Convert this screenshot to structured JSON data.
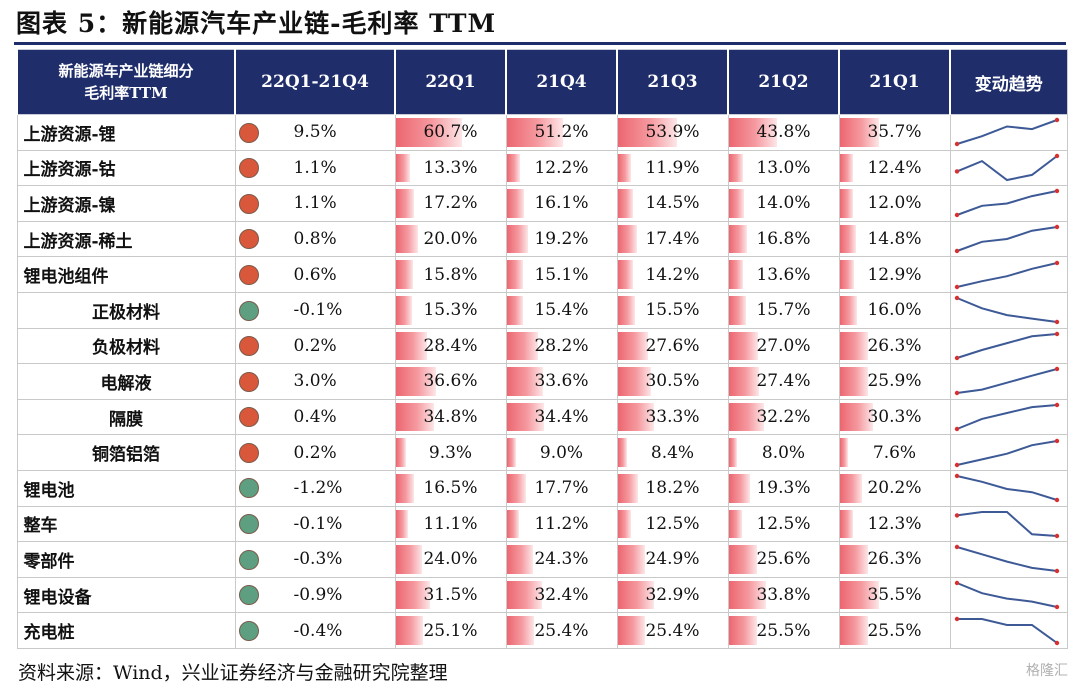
{
  "title": "图表 5：新能源汽车产业链-毛利率 TTM",
  "headers": {
    "segment_line1": "新能源车产业链细分",
    "segment_line2": "毛利率TTM",
    "change": "22Q1-21Q4",
    "periods": [
      "22Q1",
      "21Q4",
      "21Q3",
      "21Q2",
      "21Q1"
    ],
    "trend": "变动趋势"
  },
  "colors": {
    "header_bg": "#1f2d6b",
    "up": "#d9583b",
    "down": "#5e9f82",
    "bar": "#ec6670",
    "trend_line": "#3d5a97",
    "trend_marker": "#d9302e"
  },
  "rows": [
    {
      "name": "上游资源-锂",
      "indent": false,
      "direction": "up",
      "change": "9.5%",
      "values": [
        "60.7%",
        "51.2%",
        "53.9%",
        "43.8%",
        "35.7%"
      ],
      "nums": [
        60.7,
        51.2,
        53.9,
        43.8,
        35.7
      ]
    },
    {
      "name": "上游资源-钴",
      "indent": false,
      "direction": "up",
      "change": "1.1%",
      "values": [
        "13.3%",
        "12.2%",
        "11.9%",
        "13.0%",
        "12.4%"
      ],
      "nums": [
        13.3,
        12.2,
        11.9,
        13.0,
        12.4
      ]
    },
    {
      "name": "上游资源-镍",
      "indent": false,
      "direction": "up",
      "change": "1.1%",
      "values": [
        "17.2%",
        "16.1%",
        "14.5%",
        "14.0%",
        "12.0%"
      ],
      "nums": [
        17.2,
        16.1,
        14.5,
        14.0,
        12.0
      ]
    },
    {
      "name": "上游资源-稀土",
      "indent": false,
      "direction": "up",
      "change": "0.8%",
      "values": [
        "20.0%",
        "19.2%",
        "17.4%",
        "16.8%",
        "14.8%"
      ],
      "nums": [
        20.0,
        19.2,
        17.4,
        16.8,
        14.8
      ]
    },
    {
      "name": "锂电池组件",
      "indent": false,
      "direction": "up",
      "change": "0.6%",
      "values": [
        "15.8%",
        "15.1%",
        "14.2%",
        "13.6%",
        "12.9%"
      ],
      "nums": [
        15.8,
        15.1,
        14.2,
        13.6,
        12.9
      ]
    },
    {
      "name": "正极材料",
      "indent": true,
      "direction": "down",
      "change": "-0.1%",
      "values": [
        "15.3%",
        "15.4%",
        "15.5%",
        "15.7%",
        "16.0%"
      ],
      "nums": [
        15.3,
        15.4,
        15.5,
        15.7,
        16.0
      ]
    },
    {
      "name": "负极材料",
      "indent": true,
      "direction": "up",
      "change": "0.2%",
      "values": [
        "28.4%",
        "28.2%",
        "27.6%",
        "27.0%",
        "26.3%"
      ],
      "nums": [
        28.4,
        28.2,
        27.6,
        27.0,
        26.3
      ]
    },
    {
      "name": "电解液",
      "indent": true,
      "direction": "up",
      "change": "3.0%",
      "values": [
        "36.6%",
        "33.6%",
        "30.5%",
        "27.4%",
        "25.9%"
      ],
      "nums": [
        36.6,
        33.6,
        30.5,
        27.4,
        25.9
      ]
    },
    {
      "name": "隔膜",
      "indent": true,
      "direction": "up",
      "change": "0.4%",
      "values": [
        "34.8%",
        "34.4%",
        "33.3%",
        "32.2%",
        "30.3%"
      ],
      "nums": [
        34.8,
        34.4,
        33.3,
        32.2,
        30.3
      ]
    },
    {
      "name": "铜箔铝箔",
      "indent": true,
      "direction": "up",
      "change": "0.2%",
      "values": [
        "9.3%",
        "9.0%",
        "8.4%",
        "8.0%",
        "7.6%"
      ],
      "nums": [
        9.3,
        9.0,
        8.4,
        8.0,
        7.6
      ]
    },
    {
      "name": "锂电池",
      "indent": false,
      "direction": "down",
      "change": "-1.2%",
      "values": [
        "16.5%",
        "17.7%",
        "18.2%",
        "19.3%",
        "20.2%"
      ],
      "nums": [
        16.5,
        17.7,
        18.2,
        19.3,
        20.2
      ]
    },
    {
      "name": "整车",
      "indent": false,
      "direction": "down",
      "change": "-0.1%",
      "values": [
        "11.1%",
        "11.2%",
        "12.5%",
        "12.5%",
        "12.3%"
      ],
      "nums": [
        11.1,
        11.2,
        12.5,
        12.5,
        12.3
      ]
    },
    {
      "name": "零部件",
      "indent": false,
      "direction": "down",
      "change": "-0.3%",
      "values": [
        "24.0%",
        "24.3%",
        "24.9%",
        "25.6%",
        "26.3%"
      ],
      "nums": [
        24.0,
        24.3,
        24.9,
        25.6,
        26.3
      ]
    },
    {
      "name": "锂电设备",
      "indent": false,
      "direction": "down",
      "change": "-0.9%",
      "values": [
        "31.5%",
        "32.4%",
        "32.9%",
        "33.8%",
        "35.5%"
      ],
      "nums": [
        31.5,
        32.4,
        32.9,
        33.8,
        35.5
      ]
    },
    {
      "name": "充电桩",
      "indent": false,
      "direction": "down",
      "change": "-0.4%",
      "values": [
        "25.1%",
        "25.4%",
        "25.4%",
        "25.5%",
        "25.5%"
      ],
      "nums": [
        25.1,
        25.4,
        25.4,
        25.5,
        25.5
      ]
    }
  ],
  "source": "资料来源：Wind，兴业证券经济与金融研究院整理",
  "watermark": "格隆汇"
}
